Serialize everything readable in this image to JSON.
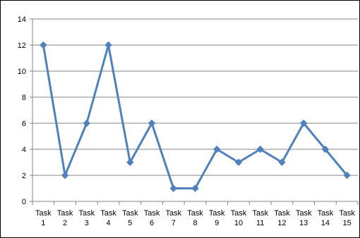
{
  "chart_data": {
    "type": "line",
    "title": "",
    "xlabel": "",
    "ylabel": "",
    "categories": [
      [
        "Task",
        "1"
      ],
      [
        "Task",
        "2"
      ],
      [
        "Task",
        "3"
      ],
      [
        "Task",
        "4"
      ],
      [
        "Task",
        "5"
      ],
      [
        "Task",
        "6"
      ],
      [
        "Task",
        "7"
      ],
      [
        "Task",
        "8"
      ],
      [
        "Task",
        "9"
      ],
      [
        "Task",
        "10"
      ],
      [
        "Task",
        "11"
      ],
      [
        "Task",
        "12"
      ],
      [
        "Task",
        "13"
      ],
      [
        "Task",
        "14"
      ],
      [
        "Task",
        "15"
      ]
    ],
    "series": [
      {
        "values": [
          12,
          2,
          6,
          12,
          3,
          6,
          1,
          1,
          4,
          3,
          4,
          3,
          6,
          4,
          2
        ],
        "color": "#4F81BD",
        "marker": "diamond"
      }
    ],
    "ylim": [
      0,
      14
    ],
    "yticks": [
      0,
      2,
      4,
      6,
      8,
      10,
      12,
      14
    ],
    "grid": "horizontal",
    "legend": "none",
    "colors": {
      "gridline": "#868686",
      "axis": "#868686"
    }
  }
}
